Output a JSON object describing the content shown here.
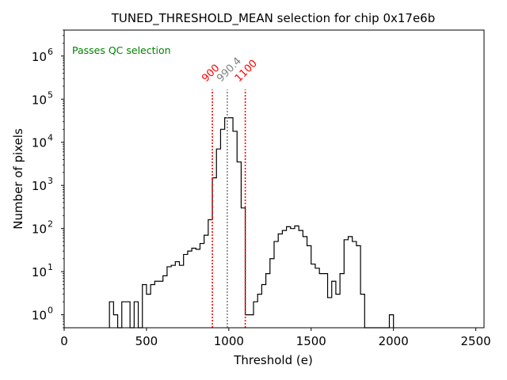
{
  "chart_data": {
    "type": "histogram",
    "title": "TUNED_THRESHOLD_MEAN selection for chip 0x17e6b",
    "xlabel": "Threshold (e)",
    "ylabel": "Number of pixels",
    "xlim": [
      0,
      2550
    ],
    "ylim": [
      0.5,
      4000000
    ],
    "yscale": "log",
    "grid": false,
    "bin_width": 25,
    "x_ticks": [
      {
        "value": 0,
        "label": "0"
      },
      {
        "value": 500,
        "label": "500"
      },
      {
        "value": 1000,
        "label": "1000"
      },
      {
        "value": 1500,
        "label": "1500"
      },
      {
        "value": 2000,
        "label": "2000"
      },
      {
        "value": 2500,
        "label": "2500"
      }
    ],
    "y_ticks": [
      {
        "value": 1,
        "base": "10",
        "exp": "0"
      },
      {
        "value": 10,
        "base": "10",
        "exp": "1"
      },
      {
        "value": 100,
        "base": "10",
        "exp": "2"
      },
      {
        "value": 1000,
        "base": "10",
        "exp": "3"
      },
      {
        "value": 10000,
        "base": "10",
        "exp": "4"
      },
      {
        "value": 100000,
        "base": "10",
        "exp": "5"
      },
      {
        "value": 1000000,
        "base": "10",
        "exp": "6"
      }
    ],
    "bins": [
      {
        "x": 275,
        "y": 2
      },
      {
        "x": 300,
        "y": 1
      },
      {
        "x": 325,
        "y": 0
      },
      {
        "x": 350,
        "y": 2
      },
      {
        "x": 375,
        "y": 2
      },
      {
        "x": 400,
        "y": 0
      },
      {
        "x": 425,
        "y": 2
      },
      {
        "x": 450,
        "y": 0
      },
      {
        "x": 475,
        "y": 5
      },
      {
        "x": 500,
        "y": 3
      },
      {
        "x": 525,
        "y": 5
      },
      {
        "x": 550,
        "y": 6
      },
      {
        "x": 575,
        "y": 6
      },
      {
        "x": 600,
        "y": 8
      },
      {
        "x": 625,
        "y": 13
      },
      {
        "x": 650,
        "y": 14
      },
      {
        "x": 675,
        "y": 17
      },
      {
        "x": 700,
        "y": 14
      },
      {
        "x": 725,
        "y": 25
      },
      {
        "x": 750,
        "y": 30
      },
      {
        "x": 775,
        "y": 35
      },
      {
        "x": 800,
        "y": 33
      },
      {
        "x": 825,
        "y": 45
      },
      {
        "x": 850,
        "y": 70
      },
      {
        "x": 875,
        "y": 160
      },
      {
        "x": 900,
        "y": 1500
      },
      {
        "x": 925,
        "y": 7000
      },
      {
        "x": 950,
        "y": 20000
      },
      {
        "x": 975,
        "y": 37000
      },
      {
        "x": 1000,
        "y": 37000
      },
      {
        "x": 1025,
        "y": 18000
      },
      {
        "x": 1050,
        "y": 3500
      },
      {
        "x": 1075,
        "y": 300
      },
      {
        "x": 1100,
        "y": 1
      },
      {
        "x": 1125,
        "y": 1
      },
      {
        "x": 1150,
        "y": 2
      },
      {
        "x": 1175,
        "y": 3
      },
      {
        "x": 1200,
        "y": 5
      },
      {
        "x": 1225,
        "y": 9
      },
      {
        "x": 1250,
        "y": 20
      },
      {
        "x": 1275,
        "y": 50
      },
      {
        "x": 1300,
        "y": 75
      },
      {
        "x": 1325,
        "y": 90
      },
      {
        "x": 1350,
        "y": 110
      },
      {
        "x": 1375,
        "y": 100
      },
      {
        "x": 1400,
        "y": 115
      },
      {
        "x": 1425,
        "y": 90
      },
      {
        "x": 1450,
        "y": 65
      },
      {
        "x": 1475,
        "y": 40
      },
      {
        "x": 1500,
        "y": 15
      },
      {
        "x": 1525,
        "y": 12
      },
      {
        "x": 1550,
        "y": 9
      },
      {
        "x": 1575,
        "y": 9
      },
      {
        "x": 1600,
        "y": 2.5
      },
      {
        "x": 1625,
        "y": 6
      },
      {
        "x": 1650,
        "y": 3
      },
      {
        "x": 1675,
        "y": 9
      },
      {
        "x": 1700,
        "y": 55
      },
      {
        "x": 1725,
        "y": 65
      },
      {
        "x": 1750,
        "y": 50
      },
      {
        "x": 1775,
        "y": 40
      },
      {
        "x": 1800,
        "y": 3
      },
      {
        "x": 1825,
        "y": 0
      },
      {
        "x": 1850,
        "y": 0
      },
      {
        "x": 1875,
        "y": 0
      },
      {
        "x": 1900,
        "y": 0
      },
      {
        "x": 1925,
        "y": 0
      },
      {
        "x": 1950,
        "y": 0
      },
      {
        "x": 1975,
        "y": 1
      }
    ],
    "vlines": [
      {
        "name": "lower-cut",
        "x": 900,
        "label": "900",
        "color": "#ff0000",
        "style": "dotted"
      },
      {
        "name": "mean",
        "x": 990.4,
        "label": "990.4",
        "color": "#808080",
        "style": "dotted"
      },
      {
        "name": "upper-cut",
        "x": 1100,
        "label": "1100",
        "color": "#ff0000",
        "style": "dotted"
      }
    ],
    "annotations": [
      {
        "text": "Passes QC selection",
        "color": "#008000",
        "position": "top-left"
      }
    ]
  }
}
